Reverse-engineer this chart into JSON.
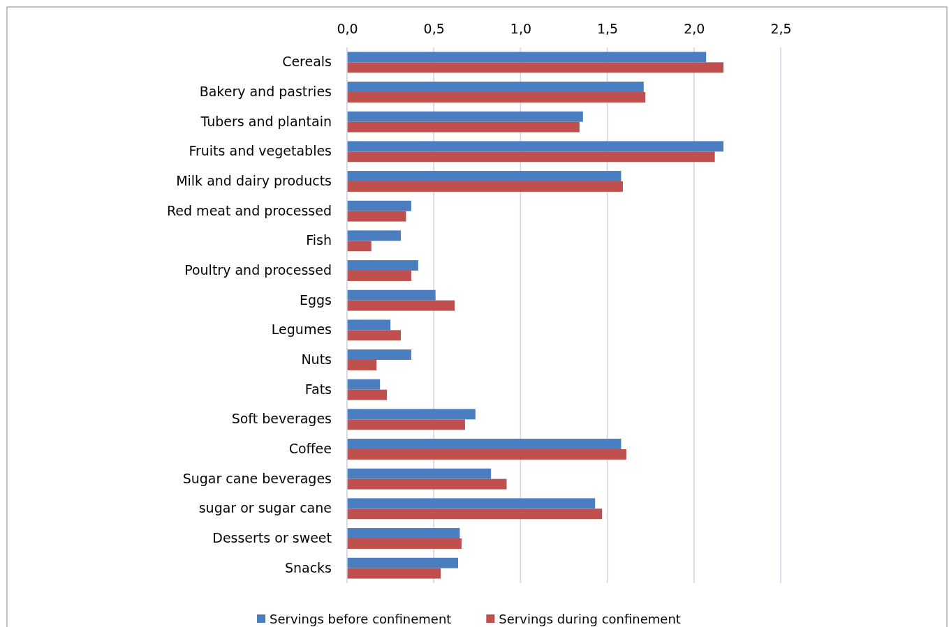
{
  "chart_data": {
    "type": "bar",
    "orientation": "horizontal",
    "categories": [
      "Cereals",
      "Bakery and pastries",
      "Tubers and plantain",
      "Fruits and vegetables",
      "Milk and dairy products",
      "Red meat and processed",
      "Fish",
      "Poultry and processed",
      "Eggs",
      "Legumes",
      "Nuts",
      "Fats",
      "Soft beverages",
      "Coffee",
      "Sugar cane beverages",
      "sugar or sugar cane",
      "Desserts or sweet",
      "Snacks"
    ],
    "series": [
      {
        "name": "Servings before confinement",
        "color": "#4a7ebf",
        "values": [
          2.07,
          1.71,
          1.36,
          2.17,
          1.58,
          0.37,
          0.31,
          0.41,
          0.51,
          0.25,
          0.37,
          0.19,
          0.74,
          1.58,
          0.83,
          1.43,
          0.65,
          0.64
        ]
      },
      {
        "name": "Servings during confinement",
        "color": "#c0504d",
        "values": [
          2.17,
          1.72,
          1.34,
          2.12,
          1.59,
          0.34,
          0.14,
          0.37,
          0.62,
          0.31,
          0.17,
          0.23,
          0.68,
          1.61,
          0.92,
          1.47,
          0.66,
          0.54
        ]
      }
    ],
    "xlim": [
      0,
      2.5
    ],
    "xticks": [
      {
        "value": 0,
        "label": "0,0"
      },
      {
        "value": 0.5,
        "label": "0,5"
      },
      {
        "value": 1,
        "label": "1,0"
      },
      {
        "value": 1.5,
        "label": "1,5"
      },
      {
        "value": 2,
        "label": "2,0"
      },
      {
        "value": 2.5,
        "label": "2,5"
      }
    ],
    "grid": "x",
    "legend": "bottom"
  }
}
